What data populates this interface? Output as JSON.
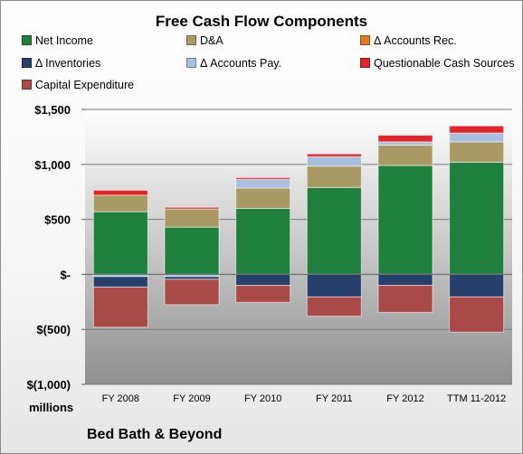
{
  "chart_data": {
    "type": "bar",
    "stacked": true,
    "title": "Free Cash Flow Components",
    "subtitle": "Bed Bath & Beyond",
    "ylabel": "millions",
    "ylim": [
      -1000,
      1500
    ],
    "y_ticks": [
      -1000,
      -500,
      0,
      500,
      1000,
      1500
    ],
    "y_tick_labels": [
      "$(1,000)",
      "$(500)",
      "$-",
      "$500",
      "$1,000",
      "$1,500"
    ],
    "grid": true,
    "legend_position": "top",
    "categories": [
      "FY 2008",
      "FY 2009",
      "FY 2010",
      "FY 2011",
      "FY 2012",
      "TTM 11-2012"
    ],
    "series": [
      {
        "name": "Net Income",
        "color": "#1f7f3c",
        "values": [
          570,
          430,
          600,
          790,
          990,
          1020
        ]
      },
      {
        "name": "D&A",
        "color": "#a89a62",
        "values": [
          150,
          165,
          185,
          195,
          185,
          185
        ]
      },
      {
        "name": "Δ Accounts Rec.",
        "color": "#e07a1f",
        "values": [
          0,
          0,
          0,
          0,
          0,
          0
        ]
      },
      {
        "name": "Δ Inventories",
        "color": "#26406b",
        "values": [
          -95,
          -25,
          -100,
          -205,
          -100,
          -205
        ]
      },
      {
        "name": "Δ Accounts Pay.",
        "color": "#a7c0e0",
        "values": [
          -20,
          -20,
          80,
          85,
          30,
          80
        ]
      },
      {
        "name": "Questionable Cash Sources",
        "color": "#e0262b",
        "values": [
          45,
          15,
          15,
          25,
          60,
          65
        ]
      },
      {
        "name": "Capital Expenditure",
        "color": "#a94a48",
        "values": [
          -365,
          -230,
          -155,
          -175,
          -245,
          -320
        ]
      }
    ]
  }
}
